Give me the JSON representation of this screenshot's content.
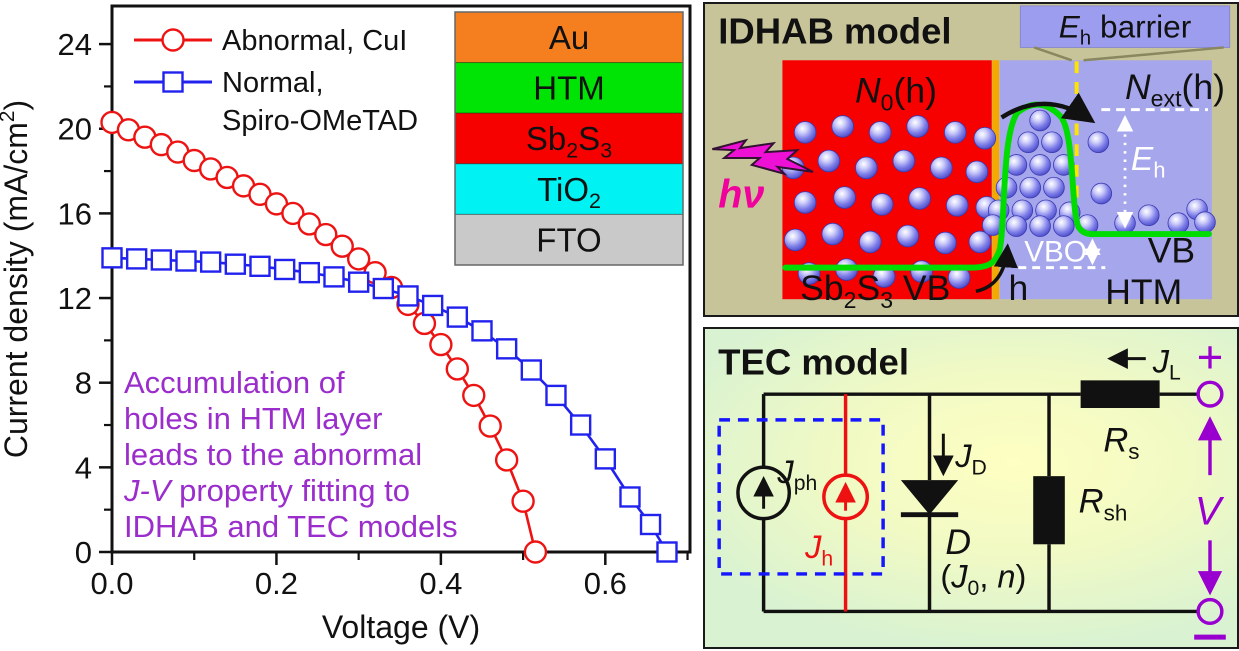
{
  "chart_data": {
    "type": "line",
    "title": "",
    "xlabel": "Voltage (V)",
    "ylabel": "Current density (mA/cm^2^)",
    "xlim": [
      0,
      0.703
    ],
    "ylim": [
      0,
      25.8
    ],
    "grid": false,
    "legend_position": "top-left",
    "x_major_ticks": [
      0,
      0.2,
      0.4,
      0.6
    ],
    "x_tick_labels": [
      "0.0",
      "0.2",
      "0.4",
      "0.6"
    ],
    "x_minor_ticks": [
      0.1,
      0.3,
      0.5,
      0.7
    ],
    "y_major_ticks": [
      0,
      4,
      8,
      12,
      16,
      20,
      24
    ],
    "y_tick_labels": [
      "0",
      "4",
      "8",
      "12",
      "16",
      "20",
      "24"
    ],
    "y_minor_ticks": [
      2,
      6,
      10,
      14,
      18,
      22
    ],
    "series": [
      {
        "name": "Abnormal, CuI",
        "legend_lines": [
          "Abnormal, CuI"
        ],
        "marker": "circle",
        "color": "#ee1313",
        "x": [
          0,
          0.02,
          0.04,
          0.06,
          0.08,
          0.1,
          0.12,
          0.14,
          0.16,
          0.18,
          0.2,
          0.22,
          0.24,
          0.26,
          0.28,
          0.3,
          0.32,
          0.34,
          0.36,
          0.38,
          0.4,
          0.42,
          0.44,
          0.46,
          0.48,
          0.5,
          0.515
        ],
        "y": [
          20.3,
          19.95,
          19.6,
          19.25,
          18.9,
          18.5,
          18.1,
          17.7,
          17.3,
          16.9,
          16.45,
          16.0,
          15.5,
          15.0,
          14.45,
          13.85,
          13.2,
          12.5,
          11.7,
          10.8,
          9.8,
          8.65,
          7.4,
          5.95,
          4.35,
          2.4,
          0
        ]
      },
      {
        "name": "Normal, Spiro-OMeTAD",
        "legend_lines": [
          "Normal,",
          "Spiro-OMeTAD"
        ],
        "marker": "square",
        "color": "#2222ef",
        "x": [
          0,
          0.03,
          0.06,
          0.09,
          0.12,
          0.15,
          0.18,
          0.21,
          0.24,
          0.27,
          0.3,
          0.33,
          0.36,
          0.39,
          0.42,
          0.45,
          0.48,
          0.51,
          0.54,
          0.57,
          0.6,
          0.63,
          0.655,
          0.675
        ],
        "y": [
          13.9,
          13.85,
          13.8,
          13.75,
          13.7,
          13.6,
          13.5,
          13.35,
          13.2,
          13.0,
          12.75,
          12.45,
          12.1,
          11.65,
          11.1,
          10.45,
          9.6,
          8.6,
          7.4,
          6.0,
          4.4,
          2.6,
          1.3,
          0
        ]
      }
    ],
    "annotation": {
      "color": "#9a2dcb",
      "lines": [
        "Accumulation of",
        "holes in HTM layer",
        "leads to the abnormal",
        "*J-V* property fitting to",
        "IDHAB and TEC models"
      ]
    },
    "inset_stack": {
      "layers": [
        {
          "label": "Au",
          "color": "#f57e1f"
        },
        {
          "label": "HTM",
          "color": "#00e405"
        },
        {
          "label": "Sb~2~S~3~",
          "color": "#f70000"
        },
        {
          "label": "TiO~2~",
          "color": "#00f2f2"
        },
        {
          "label": "FTO",
          "color": "#c9c9c9"
        }
      ]
    }
  },
  "idhab": {
    "title": "IDHAB model",
    "barrier_label": "*E*~h~ barrier",
    "hv_label": "*hν*",
    "n0_label": "*N*~0~(h)",
    "next_label": "*N*~ext~(h)",
    "eh_label": "*E*~h~",
    "vbo_label": "VBO",
    "h_label": "h",
    "sb2s3_vb_label": "Sb~2~S~3~ VB",
    "vb_label": "VB",
    "htm_label": "HTM",
    "colors": {
      "panel_bg": "#c8c49a",
      "sb2s3_region": "#f60000",
      "htm_region": "#a6a6ec",
      "barrier_box": "#9d9df0",
      "interface_line": "#f5a800",
      "barrier_dash_line": "#ffe400",
      "vb_line": "#00dc00",
      "hv_text": "#f0009c",
      "hole_sphere": "#7d7de8"
    }
  },
  "tec": {
    "title": "TEC model",
    "jph_label": "*J*~ph~",
    "jh_label": "*J*~h~",
    "jd_label": "*J*~D~",
    "diode_label": "*D*",
    "diode_params_label": "(*J*~0~, *n*)",
    "rsh_label": "*R*~sh~",
    "rs_label": "*R*~s~",
    "jl_label": "*J*~L~",
    "v_label": "*V*",
    "plus_label": "+",
    "minus_label": "−",
    "colors": {
      "wire": "#111111",
      "hole_source": "#ee1111",
      "terminal": "#9900cf",
      "dashed_box": "#1515ff"
    }
  }
}
